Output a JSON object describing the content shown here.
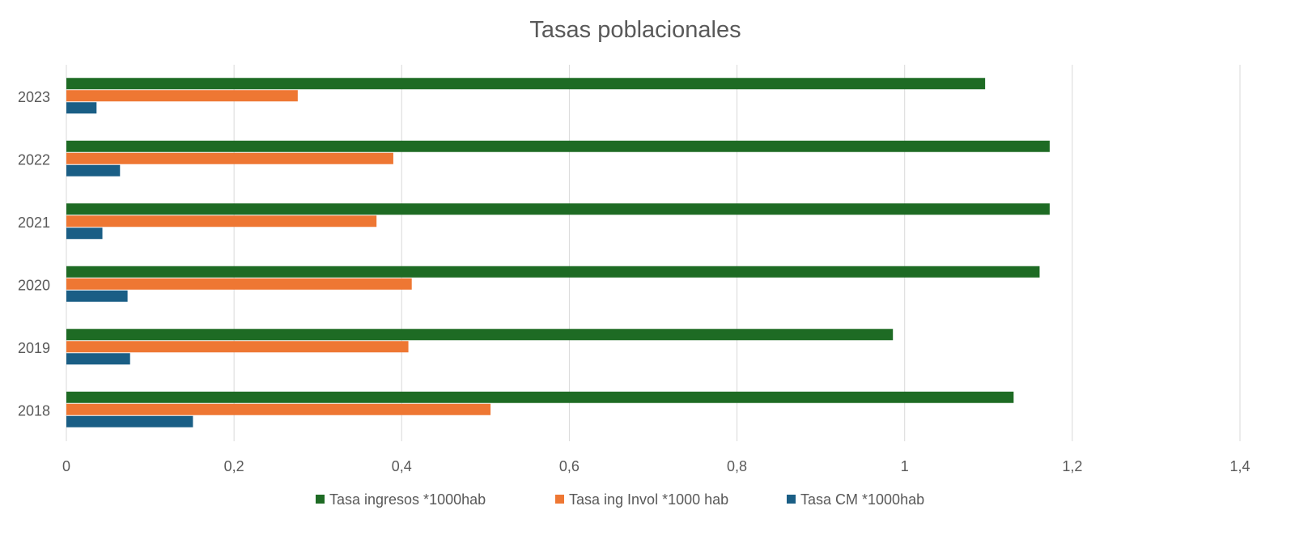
{
  "chart_data": {
    "type": "bar",
    "orientation": "horizontal",
    "title": "Tasas poblacionales",
    "xlabel": "",
    "ylabel": "",
    "categories": [
      "2018",
      "2019",
      "2020",
      "2021",
      "2022",
      "2023"
    ],
    "series": [
      {
        "name": "Tasa ingresos *1000hab",
        "color": "#1e6b24",
        "values": [
          1.13,
          0.986,
          1.161,
          1.173,
          1.173,
          1.096
        ]
      },
      {
        "name": "Tasa ing Invol *1000 hab",
        "color": "#ee7733",
        "values": [
          0.506,
          0.408,
          0.412,
          0.37,
          0.39,
          0.276
        ]
      },
      {
        "name": "Tasa CM *1000hab",
        "color": "#1a5e85",
        "values": [
          0.151,
          0.076,
          0.073,
          0.043,
          0.064,
          0.036
        ]
      }
    ],
    "xlim": [
      0,
      1.4
    ],
    "xticks": [
      "0",
      "0,2",
      "0,4",
      "0,6",
      "0,8",
      "1",
      "1,2",
      "1,4"
    ],
    "xtick_values": [
      0,
      0.2,
      0.4,
      0.6,
      0.8,
      1.0,
      1.2,
      1.4
    ],
    "grid": "vertical",
    "legend": "bottom"
  }
}
